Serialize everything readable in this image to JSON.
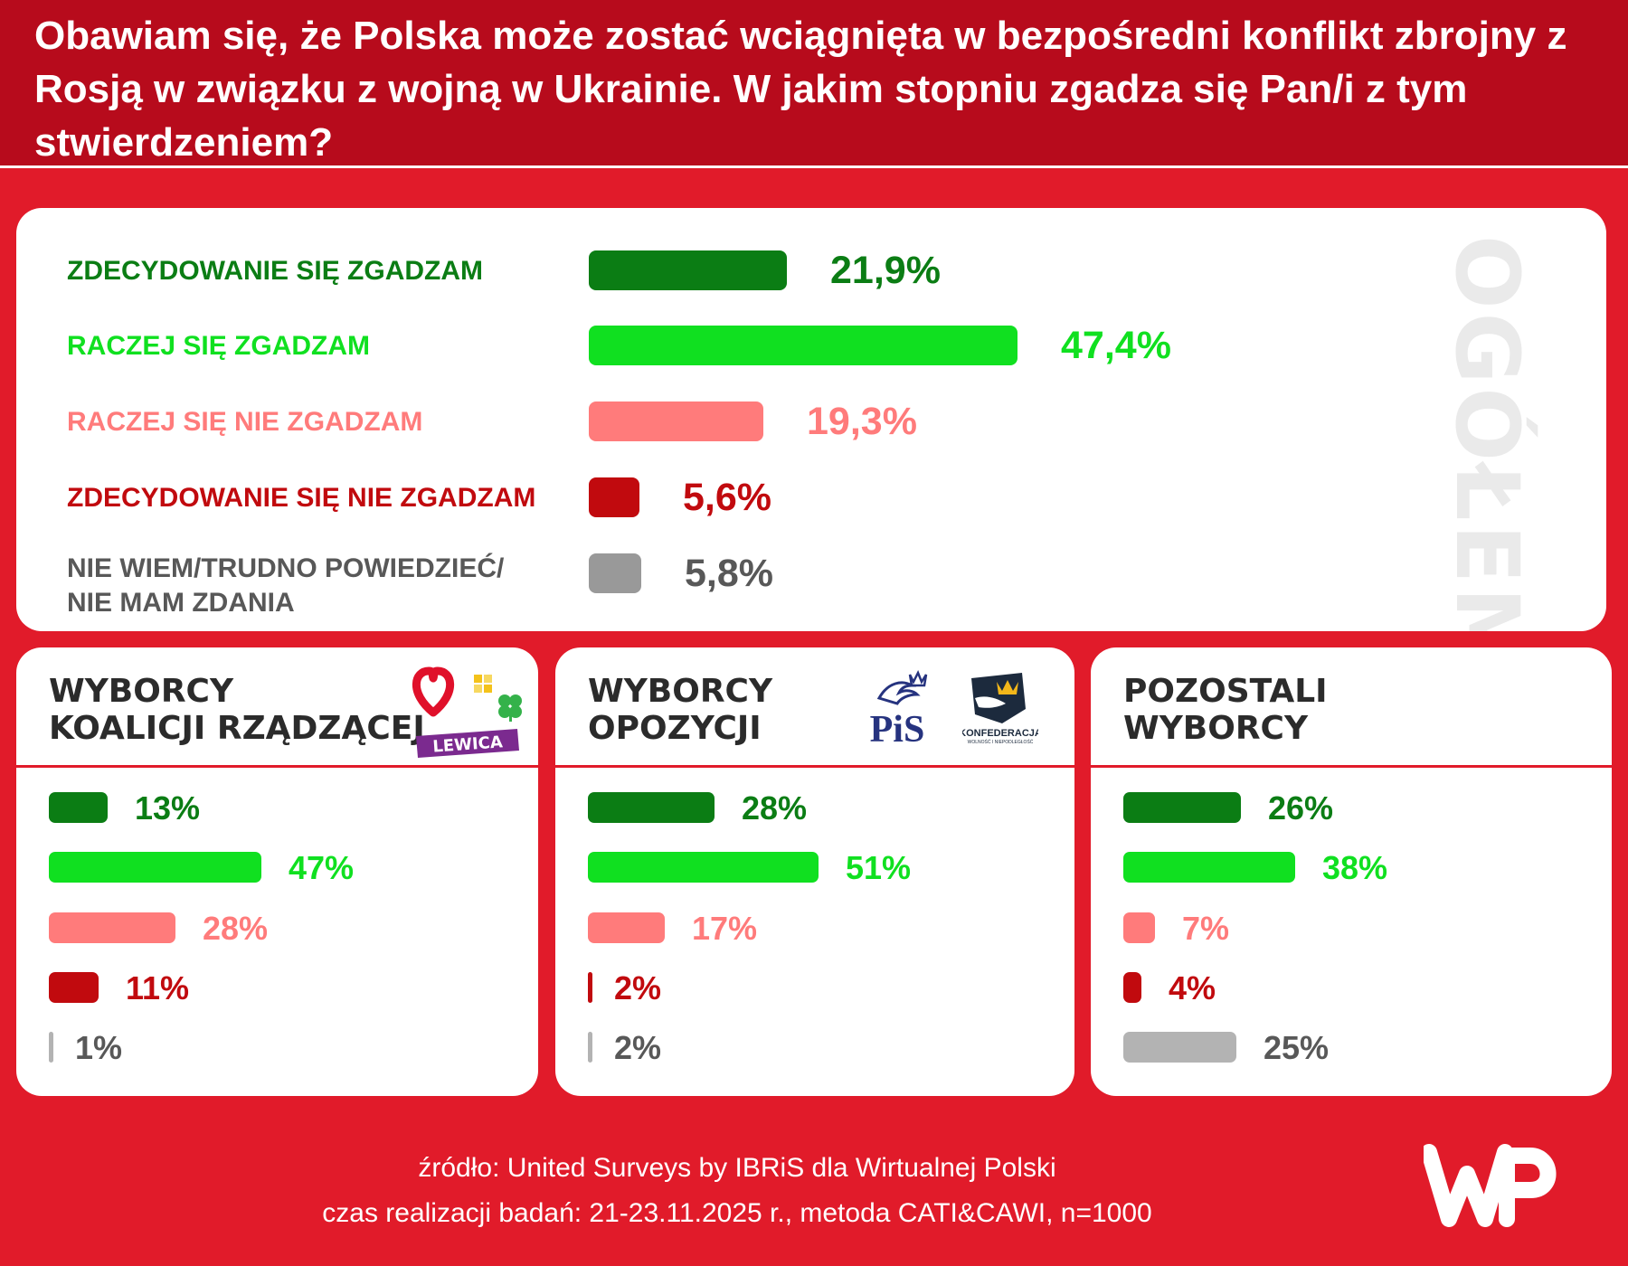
{
  "title": "Obawiam się, że Polska może zostać wciągnięta w bezpośredni konflikt zbrojny z Rosją w związku z wojną w Ukrainie. W jakim stopniu zgadza się Pan/i z tym stwierdzeniem?",
  "colors": {
    "strong_agree": "#0b7d14",
    "agree": "#10e020",
    "disagree": "#ff7b7b",
    "strong_disagree": "#c10a0e",
    "dont_know": "#999999",
    "dont_know_text": "#585858",
    "background": "#e11b2a",
    "header": "#b70b1c"
  },
  "chart_data": [
    {
      "type": "bar",
      "title": "OGÓŁEM",
      "categories": [
        "ZDECYDOWANIE SIĘ ZGADZAM",
        "RACZEJ SIĘ ZGADZAM",
        "RACZEJ SIĘ NIE ZGADZAM",
        "ZDECYDOWANIE SIĘ NIE ZGADZAM",
        "NIE WIEM/TRUDNO POWIEDZIEĆ/ NIE MAM ZDANIA"
      ],
      "values": [
        21.9,
        47.4,
        19.3,
        5.6,
        5.8
      ],
      "value_labels": [
        "21,9%",
        "47,4%",
        "19,3%",
        "5,6%",
        "5,8%"
      ],
      "category_lines": [
        [
          "ZDECYDOWANIE SIĘ ZGADZAM"
        ],
        [
          "RACZEJ SIĘ ZGADZAM"
        ],
        [
          "RACZEJ SIĘ NIE ZGADZAM"
        ],
        [
          "ZDECYDOWANIE SIĘ NIE ZGADZAM"
        ],
        [
          "NIE WIEM/TRUDNO POWIEDZIEĆ/",
          "NIE MAM ZDANIA"
        ]
      ]
    },
    {
      "type": "bar",
      "title_lines": [
        "WYBORCY",
        "KOALICJI RZĄDZĄCEJ"
      ],
      "categories": [
        "ZDECYDOWANIE SIĘ ZGADZAM",
        "RACZEJ SIĘ ZGADZAM",
        "RACZEJ SIĘ NIE ZGADZAM",
        "ZDECYDOWANIE SIĘ NIE ZGADZAM",
        "NIE WIEM/TRUDNO POWIEDZIEĆ/ NIE MAM ZDANIA"
      ],
      "values": [
        13,
        47,
        28,
        11,
        1
      ],
      "value_labels": [
        "13%",
        "47%",
        "28%",
        "11%",
        "1%"
      ]
    },
    {
      "type": "bar",
      "title_lines": [
        "WYBORCY",
        "OPOZYCJI"
      ],
      "categories": [
        "ZDECYDOWANIE SIĘ ZGADZAM",
        "RACZEJ SIĘ ZGADZAM",
        "RACZEJ SIĘ NIE ZGADZAM",
        "ZDECYDOWANIE SIĘ NIE ZGADZAM",
        "NIE WIEM/TRUDNO POWIEDZIEĆ/ NIE MAM ZDANIA"
      ],
      "values": [
        28,
        51,
        17,
        2,
        2
      ],
      "value_labels": [
        "28%",
        "51%",
        "17%",
        "2%",
        "2%"
      ]
    },
    {
      "type": "bar",
      "title_lines": [
        "POZOSTALI",
        "WYBORCY"
      ],
      "categories": [
        "ZDECYDOWANIE SIĘ ZGADZAM",
        "RACZEJ SIĘ ZGADZAM",
        "RACZEJ SIĘ NIE ZGADZAM",
        "ZDECYDOWANIE SIĘ NIE ZGADZAM",
        "NIE WIEM/TRUDNO POWIEDZIEĆ/ NIE MAM ZDANIA"
      ],
      "values": [
        26,
        38,
        7,
        4,
        25
      ],
      "value_labels": [
        "26%",
        "38%",
        "7%",
        "4%",
        "25%"
      ]
    }
  ],
  "logos": {
    "lewica": "LEWICA",
    "konfederacja": "KONFEDERACJA",
    "konfederacja_sub": "WOLNOŚĆ I NIEPODLEGŁOŚĆ",
    "pis": "PiS",
    "wp": "WP",
    "icons": [
      "heart-icon",
      "clover-icon",
      "eagle-icon",
      "crown-icon"
    ]
  },
  "footer": {
    "source": "źródło: United Surveys by IBRiS dla Wirtualnej Polski",
    "method": "czas realizacji badań: 21-23.11.2025 r., metoda CATI&CAWI, n=1000"
  }
}
